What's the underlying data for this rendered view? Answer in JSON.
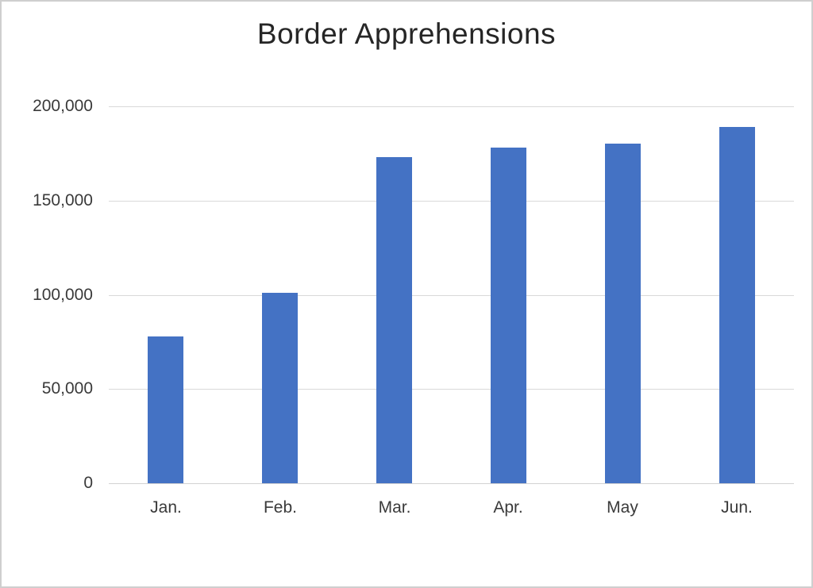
{
  "chart_data": {
    "type": "bar",
    "title": "Border Apprehensions",
    "categories": [
      "Jan.",
      "Feb.",
      "Mar.",
      "Apr.",
      "May",
      "Jun."
    ],
    "values": [
      78000,
      101000,
      173000,
      178000,
      180000,
      189000
    ],
    "ylim": [
      0,
      200000
    ],
    "yticks": [
      0,
      50000,
      100000,
      150000,
      200000
    ],
    "ytick_labels": [
      "0",
      "50,000",
      "100,000",
      "150,000",
      "200,000"
    ],
    "xlabel": "",
    "ylabel": "",
    "grid": true,
    "legend": false,
    "bar_color": "#4472C4",
    "gridline_color": "#D9D9D9",
    "axis_line_color": "#D2D2D2",
    "text_color": "#3A3A3A",
    "title_color": "#262626",
    "background_color": "#FFFFFF"
  }
}
